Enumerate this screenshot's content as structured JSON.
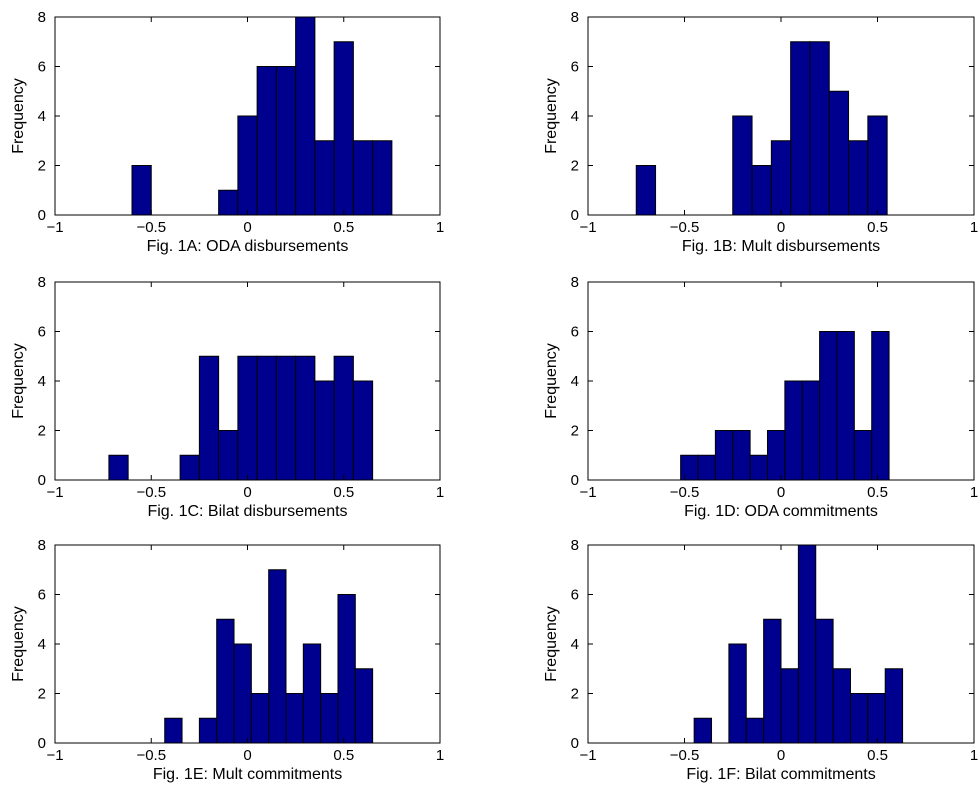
{
  "colors": {
    "bar_fill": "#00008f",
    "bar_edge": "#000000",
    "background": "#ffffff"
  },
  "chart_data": [
    {
      "type": "bar",
      "title": "Fig. 1A: ODA disbursements",
      "xlabel": "Fig. 1A: ODA disbursements",
      "ylabel": "Frequency",
      "xlim": [
        -1,
        1
      ],
      "ylim": [
        0,
        8
      ],
      "xticks": [
        "−1",
        "−0.5",
        "0",
        "0.5",
        "1"
      ],
      "yticks": [
        "0",
        "2",
        "4",
        "6",
        "8"
      ],
      "bins": [
        {
          "x0": -0.6,
          "x1": -0.5,
          "count": 2
        },
        {
          "x0": -0.15,
          "x1": -0.05,
          "count": 1
        },
        {
          "x0": -0.05,
          "x1": 0.05,
          "count": 4
        },
        {
          "x0": 0.05,
          "x1": 0.15,
          "count": 6
        },
        {
          "x0": 0.15,
          "x1": 0.25,
          "count": 6
        },
        {
          "x0": 0.25,
          "x1": 0.35,
          "count": 8
        },
        {
          "x0": 0.35,
          "x1": 0.45,
          "count": 3
        },
        {
          "x0": 0.45,
          "x1": 0.55,
          "count": 7
        },
        {
          "x0": 0.55,
          "x1": 0.65,
          "count": 3
        },
        {
          "x0": 0.65,
          "x1": 0.75,
          "count": 3
        }
      ]
    },
    {
      "type": "bar",
      "title": "Fig. 1B: Mult disbursements",
      "xlabel": "Fig. 1B: Mult disbursements",
      "ylabel": "Frequency",
      "xlim": [
        -1,
        1
      ],
      "ylim": [
        0,
        8
      ],
      "xticks": [
        "−1",
        "−0.5",
        "0",
        "0.5",
        "1"
      ],
      "yticks": [
        "0",
        "2",
        "4",
        "6",
        "8"
      ],
      "bins": [
        {
          "x0": -0.75,
          "x1": -0.65,
          "count": 2
        },
        {
          "x0": -0.25,
          "x1": -0.15,
          "count": 4
        },
        {
          "x0": -0.15,
          "x1": -0.05,
          "count": 2
        },
        {
          "x0": -0.05,
          "x1": 0.05,
          "count": 3
        },
        {
          "x0": 0.05,
          "x1": 0.15,
          "count": 7
        },
        {
          "x0": 0.15,
          "x1": 0.25,
          "count": 7
        },
        {
          "x0": 0.25,
          "x1": 0.35,
          "count": 5
        },
        {
          "x0": 0.35,
          "x1": 0.45,
          "count": 3
        },
        {
          "x0": 0.45,
          "x1": 0.55,
          "count": 4
        }
      ]
    },
    {
      "type": "bar",
      "title": "Fig. 1C: Bilat disbursements",
      "xlabel": "Fig. 1C: Bilat disbursements",
      "ylabel": "Frequency",
      "xlim": [
        -1,
        1
      ],
      "ylim": [
        0,
        8
      ],
      "xticks": [
        "−1",
        "−0.5",
        "0",
        "0.5",
        "1"
      ],
      "yticks": [
        "0",
        "2",
        "4",
        "6",
        "8"
      ],
      "bins": [
        {
          "x0": -0.72,
          "x1": -0.62,
          "count": 1
        },
        {
          "x0": -0.35,
          "x1": -0.25,
          "count": 1
        },
        {
          "x0": -0.25,
          "x1": -0.15,
          "count": 5
        },
        {
          "x0": -0.15,
          "x1": -0.05,
          "count": 2
        },
        {
          "x0": -0.05,
          "x1": 0.05,
          "count": 5
        },
        {
          "x0": 0.05,
          "x1": 0.15,
          "count": 5
        },
        {
          "x0": 0.15,
          "x1": 0.25,
          "count": 5
        },
        {
          "x0": 0.25,
          "x1": 0.35,
          "count": 5
        },
        {
          "x0": 0.35,
          "x1": 0.45,
          "count": 4
        },
        {
          "x0": 0.45,
          "x1": 0.55,
          "count": 5
        },
        {
          "x0": 0.55,
          "x1": 0.65,
          "count": 4
        }
      ]
    },
    {
      "type": "bar",
      "title": "Fig. 1D: ODA commitments",
      "xlabel": "Fig. 1D: ODA commitments",
      "ylabel": "Frequency",
      "xlim": [
        -1,
        1
      ],
      "ylim": [
        0,
        8
      ],
      "xticks": [
        "−1",
        "−0.5",
        "0",
        "0.5",
        "1"
      ],
      "yticks": [
        "0",
        "2",
        "4",
        "6",
        "8"
      ],
      "bins": [
        {
          "x0": -0.52,
          "x1": -0.43,
          "count": 1
        },
        {
          "x0": -0.43,
          "x1": -0.34,
          "count": 1
        },
        {
          "x0": -0.34,
          "x1": -0.25,
          "count": 2
        },
        {
          "x0": -0.25,
          "x1": -0.16,
          "count": 2
        },
        {
          "x0": -0.16,
          "x1": -0.07,
          "count": 1
        },
        {
          "x0": -0.07,
          "x1": 0.02,
          "count": 2
        },
        {
          "x0": 0.02,
          "x1": 0.11,
          "count": 4
        },
        {
          "x0": 0.11,
          "x1": 0.2,
          "count": 4
        },
        {
          "x0": 0.2,
          "x1": 0.29,
          "count": 6
        },
        {
          "x0": 0.29,
          "x1": 0.38,
          "count": 6
        },
        {
          "x0": 0.38,
          "x1": 0.47,
          "count": 2
        },
        {
          "x0": 0.47,
          "x1": 0.56,
          "count": 6
        }
      ]
    },
    {
      "type": "bar",
      "title": "Fig. 1E: Mult commitments",
      "xlabel": "Fig. 1E: Mult commitments",
      "ylabel": "Frequency",
      "xlim": [
        -1,
        1
      ],
      "ylim": [
        0,
        8
      ],
      "xticks": [
        "−1",
        "−0.5",
        "0",
        "0.5",
        "1"
      ],
      "yticks": [
        "0",
        "2",
        "4",
        "6",
        "8"
      ],
      "bins": [
        {
          "x0": -0.43,
          "x1": -0.34,
          "count": 1
        },
        {
          "x0": -0.25,
          "x1": -0.16,
          "count": 1
        },
        {
          "x0": -0.16,
          "x1": -0.07,
          "count": 5
        },
        {
          "x0": -0.07,
          "x1": 0.02,
          "count": 4
        },
        {
          "x0": 0.02,
          "x1": 0.11,
          "count": 2
        },
        {
          "x0": 0.11,
          "x1": 0.2,
          "count": 7
        },
        {
          "x0": 0.2,
          "x1": 0.29,
          "count": 2
        },
        {
          "x0": 0.29,
          "x1": 0.38,
          "count": 4
        },
        {
          "x0": 0.38,
          "x1": 0.47,
          "count": 2
        },
        {
          "x0": 0.47,
          "x1": 0.56,
          "count": 6
        },
        {
          "x0": 0.56,
          "x1": 0.65,
          "count": 3
        }
      ]
    },
    {
      "type": "bar",
      "title": "Fig. 1F: Bilat commitments",
      "xlabel": "Fig. 1F: Bilat commitments",
      "ylabel": "Frequency",
      "xlim": [
        -1,
        1
      ],
      "ylim": [
        0,
        8
      ],
      "xticks": [
        "−1",
        "−0.5",
        "0",
        "0.5",
        "1"
      ],
      "yticks": [
        "0",
        "2",
        "4",
        "6",
        "8"
      ],
      "bins": [
        {
          "x0": -0.45,
          "x1": -0.36,
          "count": 1
        },
        {
          "x0": -0.27,
          "x1": -0.18,
          "count": 4
        },
        {
          "x0": -0.18,
          "x1": -0.09,
          "count": 1
        },
        {
          "x0": -0.09,
          "x1": 0.0,
          "count": 5
        },
        {
          "x0": 0.0,
          "x1": 0.09,
          "count": 3
        },
        {
          "x0": 0.09,
          "x1": 0.18,
          "count": 8
        },
        {
          "x0": 0.18,
          "x1": 0.27,
          "count": 5
        },
        {
          "x0": 0.27,
          "x1": 0.36,
          "count": 3
        },
        {
          "x0": 0.36,
          "x1": 0.45,
          "count": 2
        },
        {
          "x0": 0.45,
          "x1": 0.54,
          "count": 2
        },
        {
          "x0": 0.54,
          "x1": 0.63,
          "count": 3
        }
      ]
    }
  ]
}
